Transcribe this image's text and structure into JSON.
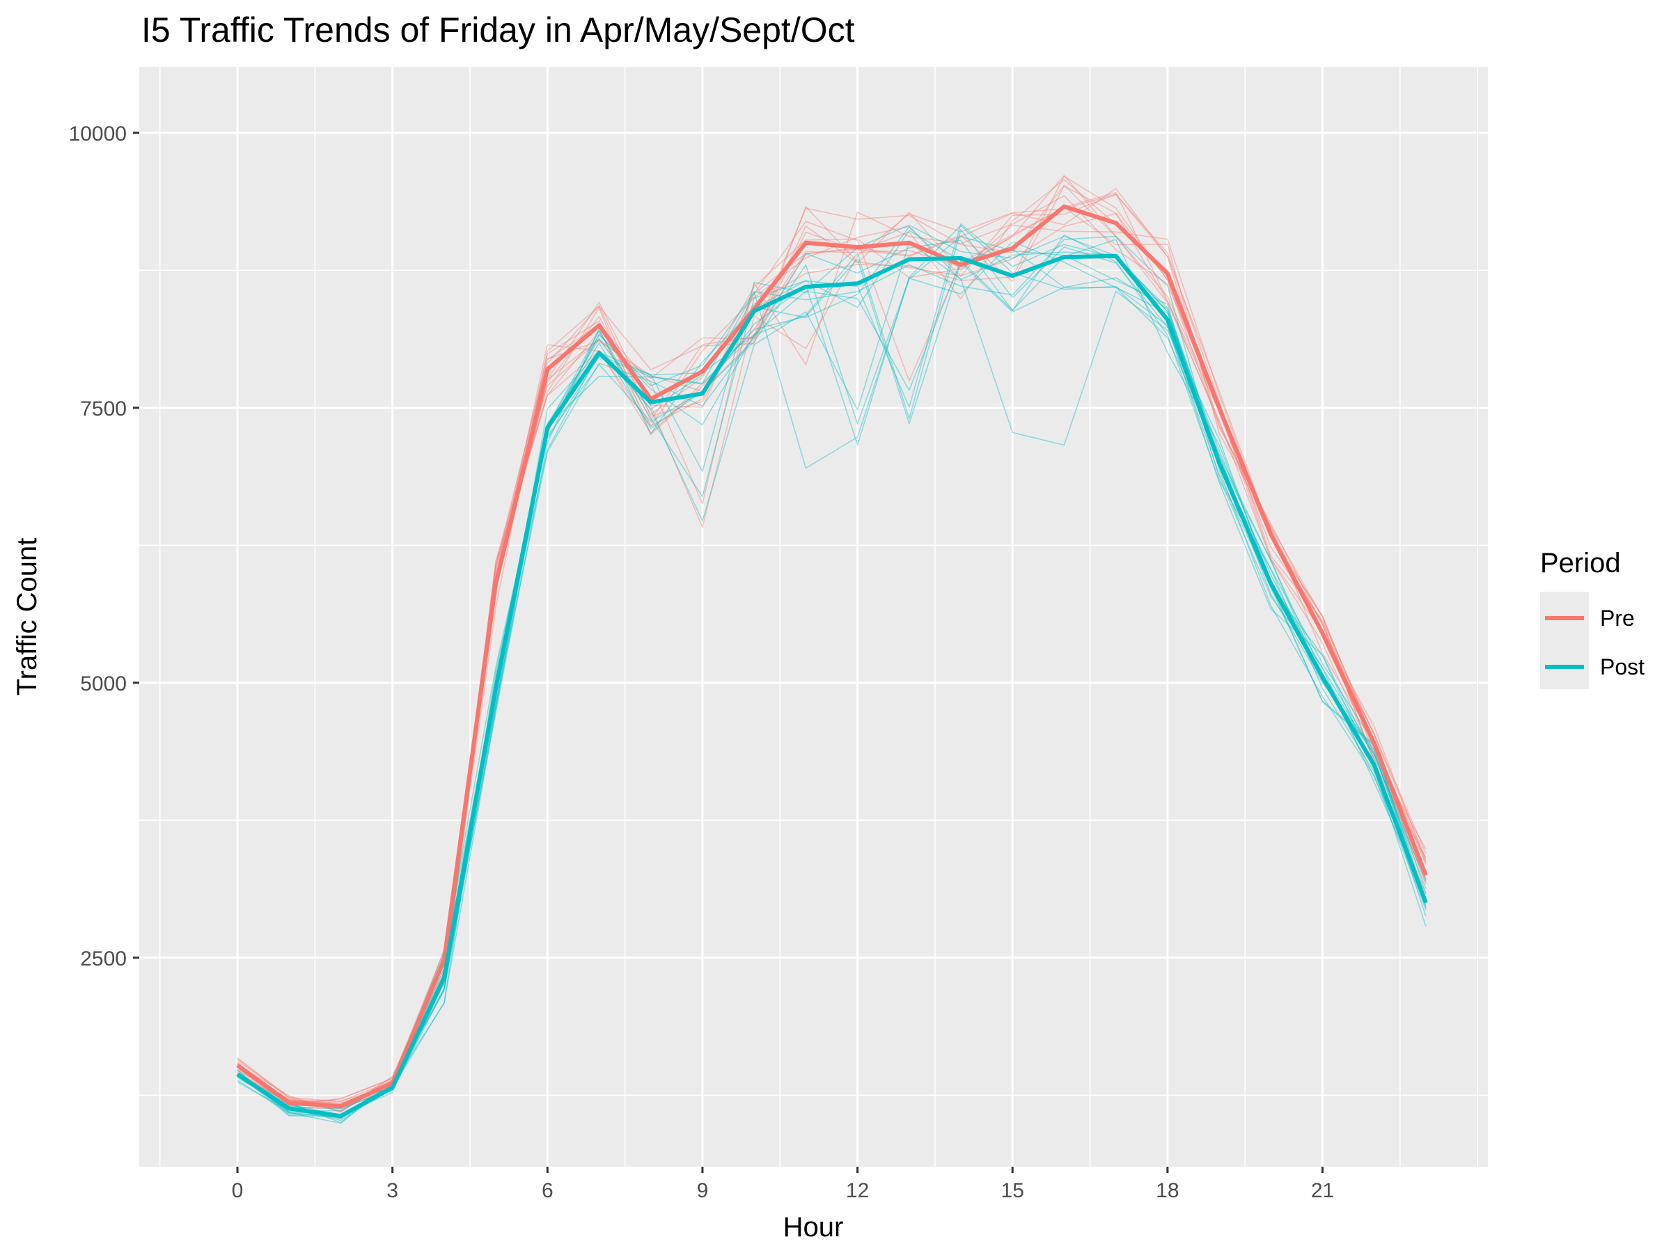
{
  "chart_data": {
    "type": "line",
    "title": "I5 Traffic Trends of Friday in Apr/May/Sept/Oct",
    "xlabel": "Hour",
    "ylabel": "Traffic Count",
    "xlim": [
      -1.9,
      24.2
    ],
    "ylim": [
      600,
      10600
    ],
    "x_ticks": [
      0,
      3,
      6,
      9,
      12,
      15,
      18,
      21
    ],
    "y_ticks": [
      2500,
      5000,
      7500,
      10000
    ],
    "grid": true,
    "legend": {
      "title": "Period",
      "position": "right"
    },
    "x": [
      0,
      1,
      2,
      3,
      4,
      5,
      6,
      7,
      8,
      9,
      10,
      11,
      12,
      13,
      14,
      15,
      16,
      17,
      18,
      19,
      20,
      21,
      22,
      23
    ],
    "series": [
      {
        "name": "Pre",
        "color": "#F8766D",
        "values": [
          1520,
          1180,
          1150,
          1360,
          2480,
          5900,
          7850,
          8250,
          7580,
          7830,
          8400,
          9000,
          8960,
          9000,
          8800,
          8950,
          9330,
          9180,
          8720,
          7500,
          6350,
          5450,
          4450,
          3250
        ]
      },
      {
        "name": "Post",
        "color": "#00BFC4",
        "values": [
          1440,
          1130,
          1060,
          1320,
          2320,
          4950,
          7320,
          8000,
          7550,
          7630,
          8380,
          8600,
          8630,
          8850,
          8860,
          8700,
          8870,
          8880,
          8300,
          7000,
          5900,
          5050,
          4250,
          3000
        ]
      }
    ]
  }
}
